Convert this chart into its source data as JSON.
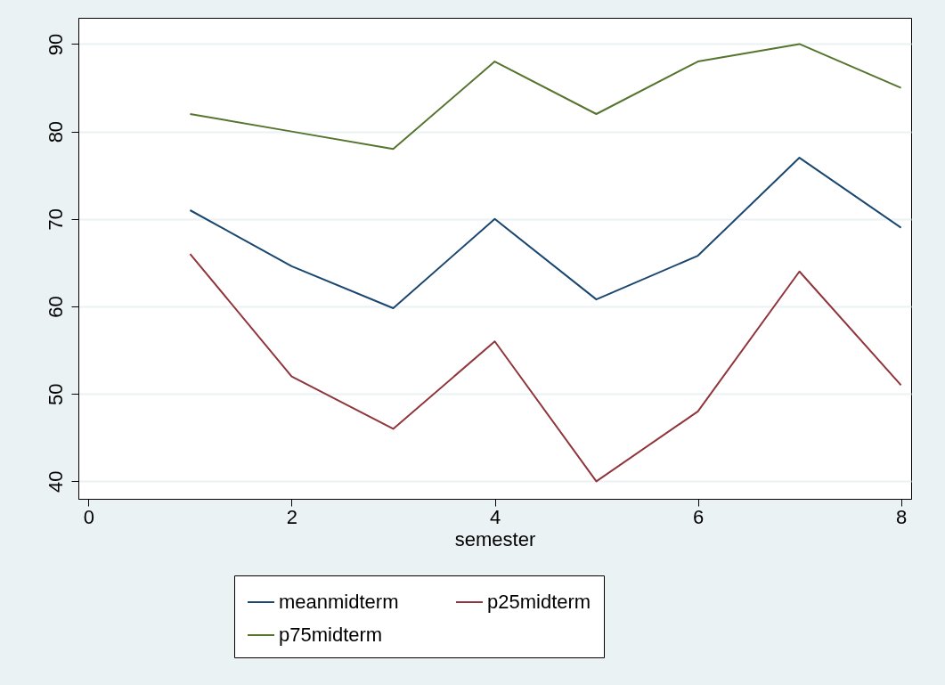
{
  "chart_data": {
    "type": "line",
    "xlabel": "semester",
    "x": [
      1,
      2,
      3,
      4,
      5,
      6,
      7,
      8
    ],
    "series": [
      {
        "name": "meanmidterm",
        "color": "#1a476f",
        "values": [
          71,
          64.6,
          59.8,
          70,
          60.8,
          65.8,
          77,
          69
        ]
      },
      {
        "name": "p25midterm",
        "color": "#90353b",
        "values": [
          66,
          52,
          46,
          56,
          40,
          48,
          64,
          51
        ]
      },
      {
        "name": "p75midterm",
        "color": "#55752f",
        "values": [
          82,
          80,
          78,
          88,
          82,
          88,
          90,
          85
        ]
      }
    ],
    "xlim": [
      -0.1,
      8.1
    ],
    "xticks": [
      0,
      2,
      4,
      6,
      8
    ],
    "ylim": [
      38,
      93
    ],
    "yticks": [
      40,
      50,
      60,
      70,
      80,
      90
    ],
    "grid": "y",
    "legend": "bottom",
    "line_style": "solid"
  }
}
